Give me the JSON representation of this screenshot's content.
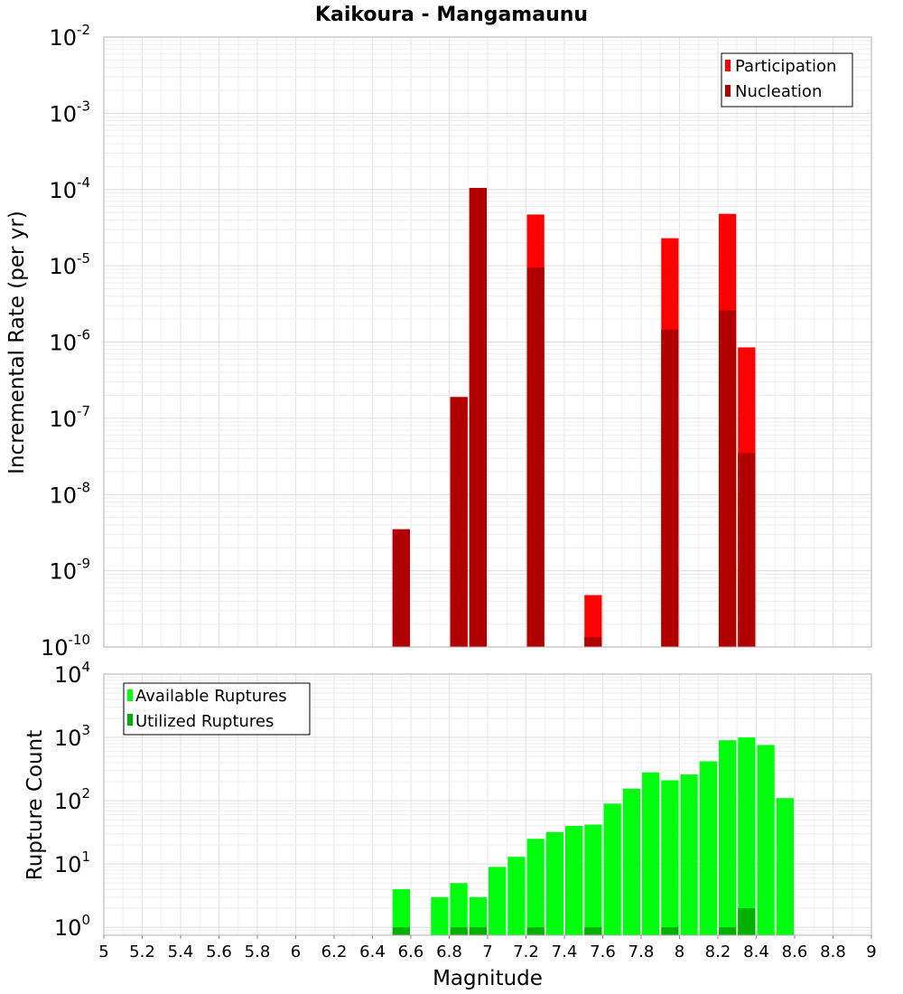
{
  "chart_data": [
    {
      "type": "bar",
      "title": "Kaikoura - Mangamaunu",
      "xlabel": "Magnitude",
      "ylabel": "Incremental Rate (per yr)",
      "yscale": "log",
      "ylim": [
        1e-10,
        0.01
      ],
      "xlim": [
        5,
        9
      ],
      "bin_width": 0.1,
      "legend_position": "top-right",
      "series": [
        {
          "name": "Participation",
          "color": "#ff0000",
          "x": [
            6.55,
            6.85,
            6.95,
            7.25,
            7.55,
            7.95,
            8.25,
            8.35
          ],
          "values": [
            3.5e-09,
            1.9e-07,
            0.000105,
            4.7e-05,
            4.8e-10,
            2.3e-05,
            4.8e-05,
            8.5e-07
          ]
        },
        {
          "name": "Nucleation",
          "color": "#b00000",
          "x": [
            6.55,
            6.85,
            6.95,
            7.25,
            7.55,
            7.95,
            8.25,
            8.35
          ],
          "values": [
            3.5e-09,
            1.9e-07,
            0.000105,
            9.5e-06,
            1.35e-10,
            1.45e-06,
            2.6e-06,
            3.5e-08
          ]
        }
      ]
    },
    {
      "type": "bar",
      "title": "",
      "xlabel": "Magnitude",
      "ylabel": "Rupture Count",
      "yscale": "log",
      "ylim": [
        0.75,
        10000
      ],
      "xlim": [
        5,
        9
      ],
      "bin_width": 0.1,
      "legend_position": "top-left",
      "series": [
        {
          "name": "Available Ruptures",
          "color": "#00ff0f",
          "x": [
            6.55,
            6.75,
            6.85,
            6.95,
            7.05,
            7.15,
            7.25,
            7.35,
            7.45,
            7.55,
            7.65,
            7.75,
            7.85,
            7.95,
            8.05,
            8.15,
            8.25,
            8.35,
            8.45,
            8.55
          ],
          "values": [
            4,
            3,
            5,
            3,
            9,
            13,
            25,
            32,
            40,
            42,
            90,
            155,
            280,
            210,
            260,
            420,
            900,
            1000,
            760,
            110
          ]
        },
        {
          "name": "Utilized Ruptures",
          "color": "#00b000",
          "x": [
            6.55,
            6.85,
            6.95,
            7.25,
            7.55,
            7.95,
            8.25,
            8.35
          ],
          "values": [
            1,
            1,
            1,
            1,
            1,
            1,
            1,
            2
          ]
        }
      ]
    }
  ],
  "x_ticks": [
    "5",
    "5.2",
    "5.4",
    "5.6",
    "5.8",
    "6",
    "6.2",
    "6.4",
    "6.6",
    "6.8",
    "7",
    "7.2",
    "7.4",
    "7.6",
    "7.8",
    "8",
    "8.2",
    "8.4",
    "8.6",
    "8.8",
    "9"
  ],
  "top_y_ticks": [
    {
      "base": "10",
      "exp": "-10"
    },
    {
      "base": "10",
      "exp": "-9"
    },
    {
      "base": "10",
      "exp": "-8"
    },
    {
      "base": "10",
      "exp": "-7"
    },
    {
      "base": "10",
      "exp": "-6"
    },
    {
      "base": "10",
      "exp": "-5"
    },
    {
      "base": "10",
      "exp": "-4"
    },
    {
      "base": "10",
      "exp": "-3"
    },
    {
      "base": "10",
      "exp": "-2"
    }
  ],
  "bottom_y_ticks": [
    {
      "base": "10",
      "exp": "0"
    },
    {
      "base": "10",
      "exp": "1"
    },
    {
      "base": "10",
      "exp": "2"
    },
    {
      "base": "10",
      "exp": "3"
    },
    {
      "base": "10",
      "exp": "4"
    }
  ]
}
